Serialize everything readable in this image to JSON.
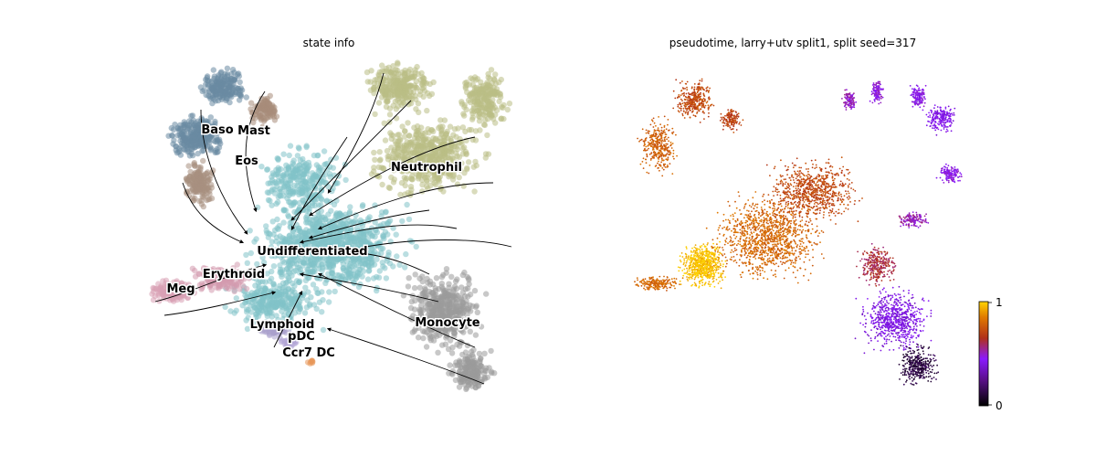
{
  "chart_data": [
    {
      "type": "scatter",
      "title": "state info",
      "variant": "UMAP embedding with RNA velocity streamlines, colored by cell state",
      "clusters": [
        {
          "name": "Baso",
          "color": "#6a8aa3"
        },
        {
          "name": "Mast",
          "color": "#a88c7a"
        },
        {
          "name": "Eos",
          "color": "#a89080"
        },
        {
          "name": "Neutrophil",
          "color": "#b9bd85"
        },
        {
          "name": "Undifferentiated",
          "color": "#82c2c8"
        },
        {
          "name": "Erythroid",
          "color": "#d49aae"
        },
        {
          "name": "Meg",
          "color": "#d8a0b4"
        },
        {
          "name": "Lymphoid",
          "color": "#a9a0cc"
        },
        {
          "name": "pDC",
          "color": "#b3a6d6"
        },
        {
          "name": "Ccr7 DC",
          "color": "#e8975a"
        },
        {
          "name": "Monocyte",
          "color": "#9a9a9a"
        }
      ],
      "streamlines": true,
      "axes_visible": false
    },
    {
      "type": "scatter",
      "title": "pseudotime, larry+utv split1, split seed=317",
      "variant": "UMAP embedding colored by pseudotime",
      "colorbar": {
        "min": 0,
        "max": 1,
        "ticks": [
          "0",
          "1"
        ],
        "colormap": "gnuplot"
      },
      "axes_visible": false
    }
  ]
}
